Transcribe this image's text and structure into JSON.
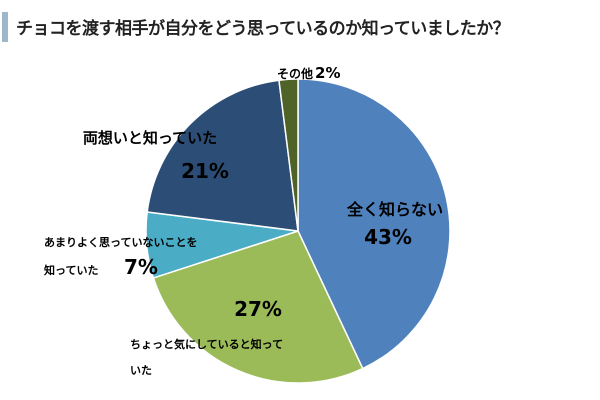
{
  "title": "チョコを渡す相手が自分をどう思っているのか知っていましたか？",
  "colors": {
    "title_accent": "#9fb8c9",
    "slices": [
      "#4f81bd",
      "#9bbb59",
      "#4bacc6",
      "#2c4d75",
      "#4f6228"
    ]
  },
  "chart_data": {
    "type": "pie",
    "title": "チョコを渡す相手が自分をどう思っているのか知っていましたか？",
    "start_angle_deg": 0,
    "direction": "clockwise",
    "slices": [
      {
        "label": "全く知らない",
        "value": 43,
        "value_label": "43%"
      },
      {
        "label": "ちょっと気にしていると知っていた",
        "label_lines": [
          "ちょっと気にしていると知って",
          "いた"
        ],
        "value": 27,
        "value_label": "27%"
      },
      {
        "label": "あまりよく思っていないことを知っていた",
        "label_lines": [
          "あまりよく思っていないことを",
          "知っていた"
        ],
        "value": 7,
        "value_label": "7%"
      },
      {
        "label": "両想いと知っていた",
        "value": 21,
        "value_label": "21%"
      },
      {
        "label": "その他",
        "value": 2,
        "value_label": "2%"
      }
    ]
  }
}
